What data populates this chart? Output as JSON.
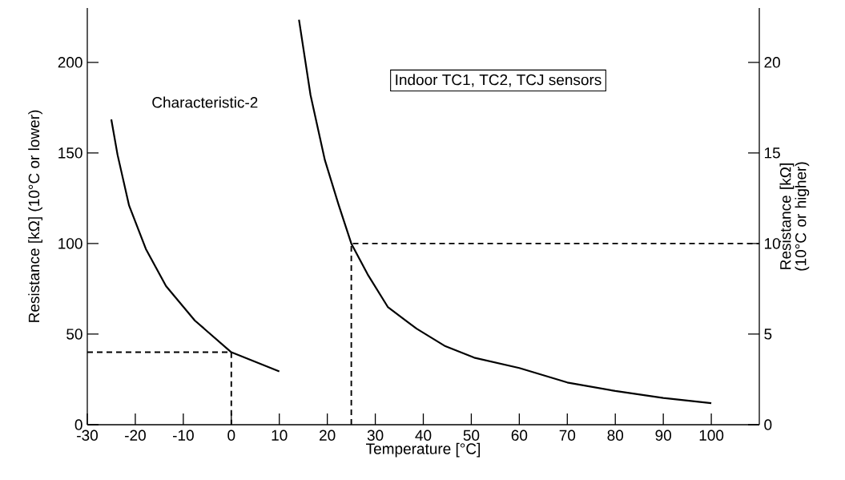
{
  "chart_data": {
    "type": "line",
    "xlabel": "Temperature [°C]",
    "ylabel": "Resistance [kΩ] (10°C or lower)",
    "y2label": "Resistance [kΩ] (10°C or higher)",
    "annotations": [
      "Characteristic-2",
      "Indoor TC1, TC2, TCJ sensors"
    ],
    "marker": "none",
    "xlim": [
      -30,
      110
    ],
    "xticks": [
      -30,
      -20,
      -10,
      0,
      10,
      20,
      30,
      40,
      50,
      60,
      70,
      80,
      90,
      100
    ],
    "ylim": [
      0,
      230
    ],
    "yticks": [
      0,
      50,
      100,
      150,
      200
    ],
    "y2lim": [
      0,
      23
    ],
    "y2ticks": [
      0,
      5,
      10,
      15,
      20
    ],
    "series": [
      {
        "color": "#000000",
        "line_style": "solid",
        "x": [
          -25,
          -23.7,
          -21.3,
          -17.8,
          -13.6,
          -7.6,
          0,
          10
        ],
        "values": [
          168.5,
          149,
          121,
          97,
          76.5,
          57.5,
          40,
          29.4
        ]
      },
      {
        "color": "#000000",
        "line_style": "solid",
        "axis": "y2",
        "x": [
          14.1,
          16.5,
          19.5,
          22.4,
          25,
          28.4,
          32.6,
          38.6,
          44.6,
          50.6,
          60,
          70,
          80,
          90,
          100
        ],
        "values": [
          22.35,
          18.2,
          14.6,
          12.1,
          10,
          8.3,
          6.5,
          5.3,
          4.33,
          3.7,
          3.13,
          2.33,
          1.86,
          1.48,
          1.19
        ]
      },
      {
        "color": "#000000",
        "line_style": "dashed",
        "x": [
          -30,
          0,
          0
        ],
        "values": [
          40,
          40,
          0
        ]
      },
      {
        "color": "#000000",
        "line_style": "dashed",
        "axis": "y2",
        "x": [
          25,
          25,
          110
        ],
        "values": [
          0,
          10,
          10
        ]
      }
    ]
  }
}
